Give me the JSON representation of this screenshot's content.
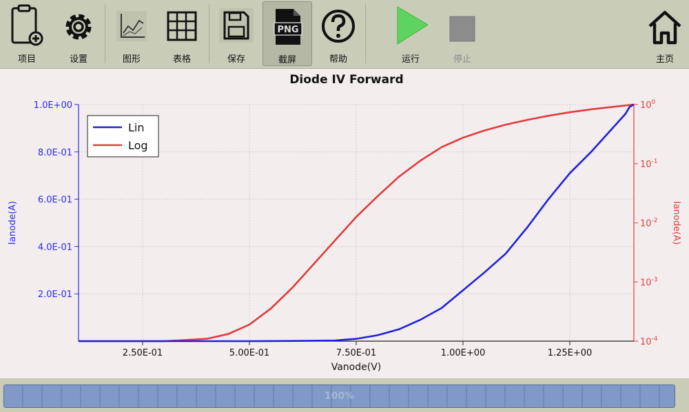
{
  "toolbar": {
    "project": "项目",
    "settings": "设置",
    "graph": "图形",
    "table": "表格",
    "save": "保存",
    "screenshot": "截屏",
    "png_badge": "PNG",
    "help": "帮助",
    "run": "运行",
    "stop": "停止",
    "home": "主页"
  },
  "progress": {
    "text": "100%",
    "value": 100
  },
  "colors": {
    "lin": "#1f1fe0",
    "log": "#e03a3a",
    "run": "#5fd35f",
    "stop": "#8c8c8c"
  },
  "chart_data": {
    "type": "line",
    "title": "Diode IV Forward",
    "xlabel": "Vanode(V)",
    "ylabel_left": "Ianode(A)",
    "ylabel_right": "Ianode(A)",
    "xlim": [
      0.1,
      1.4
    ],
    "ylim_left": [
      0,
      1.0
    ],
    "ylim_right_log10": [
      -4,
      0
    ],
    "right_scale": "log",
    "grid": true,
    "legend_position": "top-left",
    "x_ticks": [
      {
        "v": 0.25,
        "label": "2.50E-01"
      },
      {
        "v": 0.5,
        "label": "5.00E-01"
      },
      {
        "v": 0.75,
        "label": "7.50E-01"
      },
      {
        "v": 1.0,
        "label": "1.00E+00"
      },
      {
        "v": 1.25,
        "label": "1.25E+00"
      }
    ],
    "y_left_ticks": [
      {
        "v": 0.2,
        "label": "2.0E-01"
      },
      {
        "v": 0.4,
        "label": "4.0E-01"
      },
      {
        "v": 0.6,
        "label": "6.0E-01"
      },
      {
        "v": 0.8,
        "label": "8.0E-01"
      },
      {
        "v": 1.0,
        "label": "1.0E+00"
      }
    ],
    "y_right_ticks": [
      {
        "exp": -4,
        "base": "10",
        "sup": "-4"
      },
      {
        "exp": -3,
        "base": "10",
        "sup": "-3"
      },
      {
        "exp": -2,
        "base": "10",
        "sup": "-2"
      },
      {
        "exp": -1,
        "base": "10",
        "sup": "-1"
      },
      {
        "exp": 0,
        "base": "10",
        "sup": "0"
      }
    ],
    "series": [
      {
        "name": "Lin",
        "axis": "left",
        "points": [
          [
            0.1,
            0
          ],
          [
            0.5,
            0
          ],
          [
            0.6,
            0.001
          ],
          [
            0.7,
            0.003
          ],
          [
            0.75,
            0.01
          ],
          [
            0.8,
            0.025
          ],
          [
            0.85,
            0.05
          ],
          [
            0.9,
            0.09
          ],
          [
            0.95,
            0.14
          ],
          [
            1.0,
            0.215
          ],
          [
            1.05,
            0.29
          ],
          [
            1.1,
            0.37
          ],
          [
            1.15,
            0.48
          ],
          [
            1.2,
            0.6
          ],
          [
            1.25,
            0.71
          ],
          [
            1.3,
            0.8
          ],
          [
            1.35,
            0.9
          ],
          [
            1.38,
            0.96
          ],
          [
            1.39,
            0.99
          ],
          [
            1.4,
            1.0
          ]
        ]
      },
      {
        "name": "Log",
        "axis": "right",
        "points": [
          [
            0.1,
            -4.0
          ],
          [
            0.3,
            -4.0
          ],
          [
            0.4,
            -3.96
          ],
          [
            0.45,
            -3.88
          ],
          [
            0.5,
            -3.72
          ],
          [
            0.55,
            -3.45
          ],
          [
            0.6,
            -3.1
          ],
          [
            0.65,
            -2.7
          ],
          [
            0.7,
            -2.3
          ],
          [
            0.75,
            -1.9
          ],
          [
            0.8,
            -1.55
          ],
          [
            0.85,
            -1.22
          ],
          [
            0.9,
            -0.95
          ],
          [
            0.95,
            -0.72
          ],
          [
            1.0,
            -0.56
          ],
          [
            1.05,
            -0.44
          ],
          [
            1.1,
            -0.34
          ],
          [
            1.15,
            -0.26
          ],
          [
            1.2,
            -0.19
          ],
          [
            1.25,
            -0.13
          ],
          [
            1.3,
            -0.08
          ],
          [
            1.35,
            -0.04
          ],
          [
            1.4,
            0.0
          ]
        ]
      }
    ]
  }
}
